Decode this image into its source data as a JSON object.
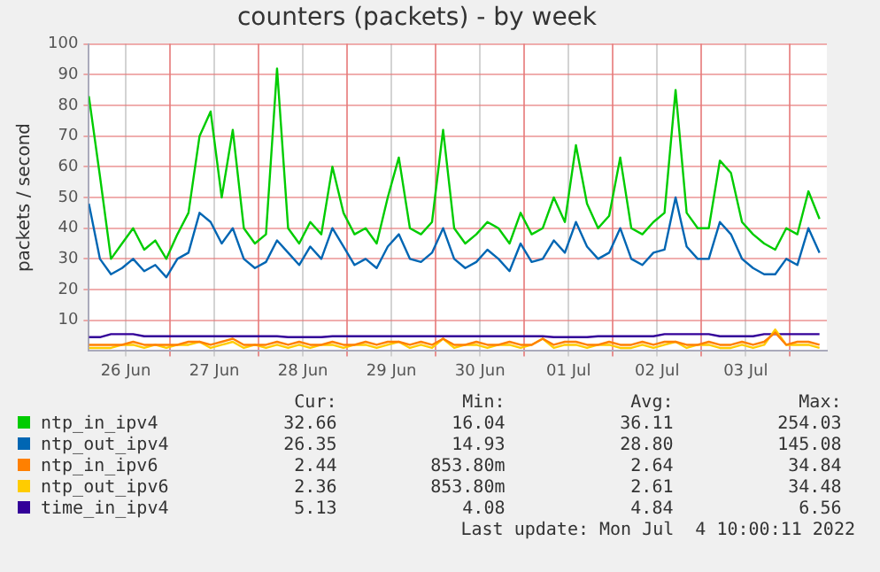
{
  "chart_data": {
    "type": "line",
    "title": "counters (packets) - by week",
    "ylabel": "packets / second",
    "x": [
      "2022-06-26T02:00",
      "2022-06-26T05:00",
      "2022-06-26T08:00",
      "2022-06-26T11:00",
      "2022-06-26T14:00",
      "2022-06-26T17:00",
      "2022-06-26T20:00",
      "2022-06-26T23:00",
      "2022-06-27T02:00",
      "2022-06-27T05:00",
      "2022-06-27T08:00",
      "2022-06-27T11:00",
      "2022-06-27T14:00",
      "2022-06-27T17:00",
      "2022-06-27T20:00",
      "2022-06-27T23:00",
      "2022-06-28T02:00",
      "2022-06-28T05:00",
      "2022-06-28T08:00",
      "2022-06-28T11:00",
      "2022-06-28T14:00",
      "2022-06-28T17:00",
      "2022-06-28T20:00",
      "2022-06-28T23:00",
      "2022-06-29T02:00",
      "2022-06-29T05:00",
      "2022-06-29T08:00",
      "2022-06-29T11:00",
      "2022-06-29T14:00",
      "2022-06-29T17:00",
      "2022-06-29T20:00",
      "2022-06-29T23:00",
      "2022-06-30T02:00",
      "2022-06-30T05:00",
      "2022-06-30T08:00",
      "2022-06-30T11:00",
      "2022-06-30T14:00",
      "2022-06-30T17:00",
      "2022-06-30T20:00",
      "2022-06-30T23:00",
      "2022-07-01T02:00",
      "2022-07-01T05:00",
      "2022-07-01T08:00",
      "2022-07-01T11:00",
      "2022-07-01T14:00",
      "2022-07-01T17:00",
      "2022-07-01T20:00",
      "2022-07-01T23:00",
      "2022-07-02T02:00",
      "2022-07-02T05:00",
      "2022-07-02T08:00",
      "2022-07-02T11:00",
      "2022-07-02T14:00",
      "2022-07-02T17:00",
      "2022-07-02T20:00",
      "2022-07-02T23:00",
      "2022-07-03T02:00",
      "2022-07-03T05:00",
      "2022-07-03T08:00",
      "2022-07-03T11:00",
      "2022-07-03T14:00",
      "2022-07-03T17:00",
      "2022-07-03T20:00",
      "2022-07-03T23:00",
      "2022-07-04T02:00",
      "2022-07-04T05:00",
      "2022-07-04T08:00"
    ],
    "series": [
      {
        "name": "ntp_in_ipv4",
        "color": "#00cc00",
        "values": [
          83,
          57,
          30,
          35,
          40,
          33,
          36,
          30,
          38,
          45,
          70,
          78,
          50,
          72,
          40,
          35,
          38,
          92,
          40,
          35,
          42,
          38,
          60,
          45,
          38,
          40,
          35,
          50,
          63,
          40,
          38,
          42,
          72,
          40,
          35,
          38,
          42,
          40,
          35,
          45,
          38,
          40,
          50,
          42,
          67,
          48,
          40,
          44,
          63,
          40,
          38,
          42,
          45,
          85,
          45,
          40,
          40,
          62,
          58,
          42,
          38,
          35,
          33,
          40,
          38,
          52,
          43
        ]
      },
      {
        "name": "ntp_out_ipv4",
        "color": "#0066b3",
        "values": [
          48,
          30,
          25,
          27,
          30,
          26,
          28,
          24,
          30,
          32,
          45,
          42,
          35,
          40,
          30,
          27,
          29,
          36,
          32,
          28,
          34,
          30,
          40,
          34,
          28,
          30,
          27,
          34,
          38,
          30,
          29,
          32,
          40,
          30,
          27,
          29,
          33,
          30,
          26,
          35,
          29,
          30,
          36,
          32,
          42,
          34,
          30,
          32,
          40,
          30,
          28,
          32,
          33,
          50,
          34,
          30,
          30,
          42,
          38,
          30,
          27,
          25,
          25,
          30,
          28,
          40,
          32
        ]
      },
      {
        "name": "ntp_in_ipv6",
        "color": "#ff8000",
        "values": [
          2,
          2,
          2,
          2,
          3,
          2,
          2,
          2,
          2,
          3,
          3,
          2,
          3,
          4,
          2,
          2,
          2,
          3,
          2,
          3,
          2,
          2,
          3,
          2,
          2,
          3,
          2,
          3,
          3,
          2,
          3,
          2,
          4,
          2,
          2,
          3,
          2,
          2,
          3,
          2,
          2,
          4,
          2,
          3,
          3,
          2,
          2,
          3,
          2,
          2,
          3,
          2,
          3,
          3,
          2,
          2,
          3,
          2,
          2,
          3,
          2,
          3,
          6,
          2,
          3,
          3,
          2
        ]
      },
      {
        "name": "ntp_out_ipv6",
        "color": "#ffcc00",
        "values": [
          1,
          1,
          1,
          2,
          2,
          1,
          2,
          1,
          2,
          2,
          3,
          1,
          2,
          3,
          1,
          2,
          1,
          2,
          1,
          2,
          1,
          2,
          2,
          1,
          2,
          2,
          1,
          2,
          3,
          1,
          2,
          1,
          4,
          1,
          2,
          2,
          1,
          2,
          2,
          1,
          2,
          4,
          1,
          2,
          2,
          1,
          2,
          2,
          1,
          1,
          2,
          1,
          2,
          3,
          1,
          2,
          2,
          1,
          1,
          2,
          1,
          2,
          7,
          2,
          2,
          2,
          1
        ]
      },
      {
        "name": "time_in_ipv4",
        "color": "#330099",
        "values": [
          4.5,
          4.5,
          5.5,
          5.5,
          5.5,
          4.8,
          4.8,
          4.8,
          4.8,
          4.8,
          4.8,
          4.8,
          4.8,
          4.8,
          4.8,
          4.8,
          4.8,
          4.8,
          4.5,
          4.5,
          4.5,
          4.5,
          4.8,
          4.8,
          4.8,
          4.8,
          4.8,
          4.8,
          4.8,
          4.8,
          4.8,
          4.8,
          4.8,
          4.8,
          4.8,
          4.8,
          4.8,
          4.8,
          4.8,
          4.8,
          4.8,
          4.8,
          4.5,
          4.5,
          4.5,
          4.5,
          4.8,
          4.8,
          4.8,
          4.8,
          4.8,
          4.8,
          5.5,
          5.5,
          5.5,
          5.5,
          5.5,
          4.8,
          4.8,
          4.8,
          4.8,
          5.5,
          5.5,
          5.5,
          5.5,
          5.5,
          5.5
        ]
      }
    ],
    "xlim": [
      "2022-06-26T02:00",
      "2022-07-04T10:00"
    ],
    "xticks": [
      {
        "value": "2022-06-26T12:00",
        "label": "26 Jun"
      },
      {
        "value": "2022-06-27T00:00",
        "label": null
      },
      {
        "value": "2022-06-27T12:00",
        "label": "27 Jun"
      },
      {
        "value": "2022-06-28T00:00",
        "label": null
      },
      {
        "value": "2022-06-28T12:00",
        "label": "28 Jun"
      },
      {
        "value": "2022-06-29T00:00",
        "label": null
      },
      {
        "value": "2022-06-29T12:00",
        "label": "29 Jun"
      },
      {
        "value": "2022-06-30T00:00",
        "label": null
      },
      {
        "value": "2022-06-30T12:00",
        "label": "30 Jun"
      },
      {
        "value": "2022-07-01T00:00",
        "label": null
      },
      {
        "value": "2022-07-01T12:00",
        "label": "01 Jul"
      },
      {
        "value": "2022-07-02T00:00",
        "label": null
      },
      {
        "value": "2022-07-02T12:00",
        "label": "02 Jul"
      },
      {
        "value": "2022-07-03T00:00",
        "label": null
      },
      {
        "value": "2022-07-03T12:00",
        "label": "03 Jul"
      },
      {
        "value": "2022-07-04T00:00",
        "label": null
      }
    ],
    "ylim": [
      0,
      100
    ],
    "yticks": [
      10,
      20,
      30,
      40,
      50,
      60,
      70,
      80,
      90,
      100
    ],
    "grid": true,
    "legend": "bottom",
    "marker": "none",
    "line_style": "solid",
    "annotations": [
      "Cur:",
      "Min:",
      "Avg:",
      "Max:",
      "32.66",
      "16.04",
      "36.11",
      "254.03",
      "26.35",
      "14.93",
      "28.80",
      "145.08",
      "2.44",
      "853.80m",
      "2.64",
      "34.84",
      "2.36",
      "853.80m",
      "2.61",
      "34.48",
      "5.13",
      "4.08",
      "4.84",
      "6.56",
      "Last update: Mon Jul  4 10:00:11 2022"
    ]
  }
}
